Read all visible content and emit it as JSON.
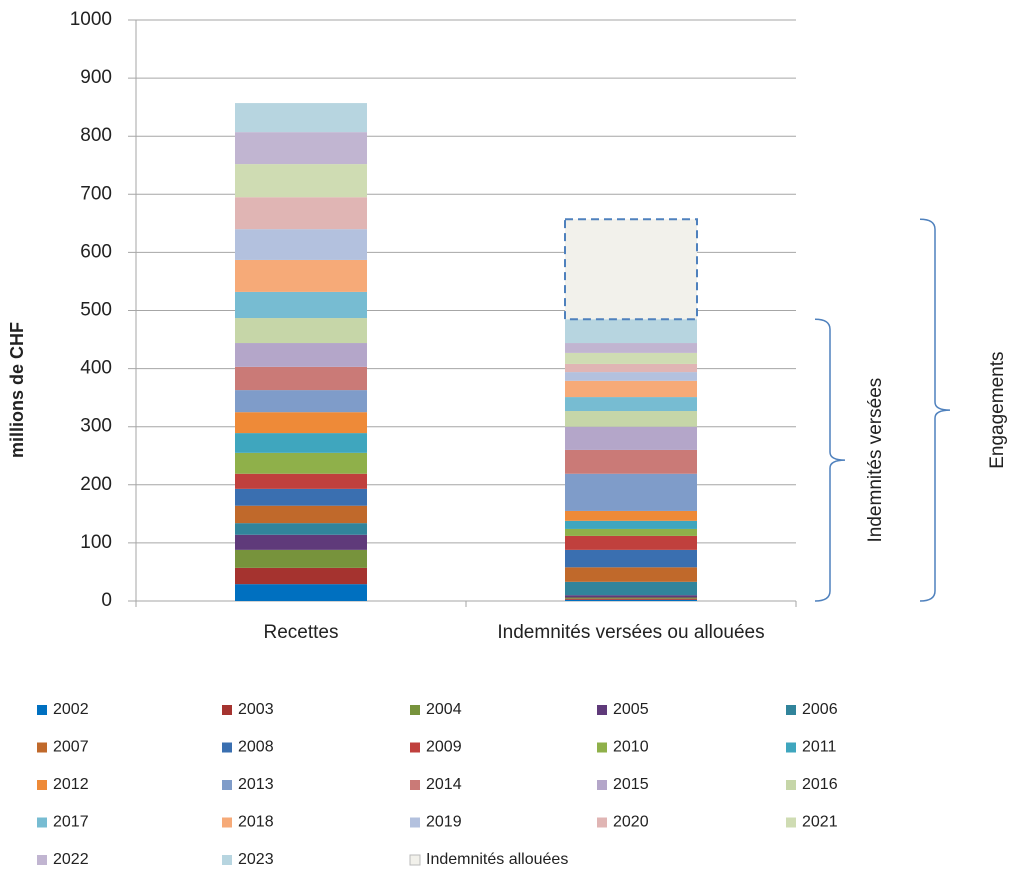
{
  "chart_data": {
    "type": "stacked-bar",
    "y_label": "millions de CHF",
    "categories": [
      "Recettes",
      "Indemnités versées ou allouées"
    ],
    "ylim": [
      0,
      1000
    ],
    "yticks": [
      0,
      100,
      200,
      300,
      400,
      500,
      600,
      700,
      800,
      900,
      1000
    ],
    "grid": true,
    "series": [
      {
        "name": "2002",
        "color": "#0070c0",
        "values": [
          29,
          2
        ]
      },
      {
        "name": "2003",
        "color": "#a5332f",
        "values": [
          28,
          2
        ]
      },
      {
        "name": "2004",
        "color": "#77933c",
        "values": [
          31,
          2
        ]
      },
      {
        "name": "2005",
        "color": "#5f3a7a",
        "values": [
          26,
          4
        ]
      },
      {
        "name": "2006",
        "color": "#31849b",
        "values": [
          20,
          23
        ]
      },
      {
        "name": "2007",
        "color": "#c0692b",
        "values": [
          30,
          25
        ]
      },
      {
        "name": "2008",
        "color": "#3a6fb0",
        "values": [
          29,
          30
        ]
      },
      {
        "name": "2009",
        "color": "#c0403d",
        "values": [
          26,
          24
        ]
      },
      {
        "name": "2010",
        "color": "#8fb04a",
        "values": [
          36,
          12
        ]
      },
      {
        "name": "2011",
        "color": "#3fa6be",
        "values": [
          34,
          14
        ]
      },
      {
        "name": "2012",
        "color": "#ee8a38",
        "values": [
          36,
          17
        ]
      },
      {
        "name": "2013",
        "color": "#7f9cc9",
        "values": [
          38,
          64
        ]
      },
      {
        "name": "2014",
        "color": "#ca7a77",
        "values": [
          40,
          41
        ]
      },
      {
        "name": "2015",
        "color": "#b4a6c9",
        "values": [
          41,
          40
        ]
      },
      {
        "name": "2016",
        "color": "#c6d6a8",
        "values": [
          43,
          27
        ]
      },
      {
        "name": "2017",
        "color": "#77bcd2",
        "values": [
          45,
          24
        ]
      },
      {
        "name": "2018",
        "color": "#f6aa78",
        "values": [
          55,
          28
        ]
      },
      {
        "name": "2019",
        "color": "#b3c1de",
        "values": [
          53,
          15
        ]
      },
      {
        "name": "2020",
        "color": "#e0b5b4",
        "values": [
          55,
          14
        ]
      },
      {
        "name": "2021",
        "color": "#cfdcb3",
        "values": [
          57,
          19
        ]
      },
      {
        "name": "2022",
        "color": "#c1b5d1",
        "values": [
          55,
          17
        ]
      },
      {
        "name": "2023",
        "color": "#b7d5e0",
        "values": [
          50,
          41
        ]
      },
      {
        "name": "Indemnités allouées",
        "color": "#f2f1eb",
        "border": "#4f81bd",
        "dashed": true,
        "values": [
          null,
          172
        ]
      }
    ],
    "annotations": [
      "Indemnités versées",
      "Engagements"
    ]
  }
}
